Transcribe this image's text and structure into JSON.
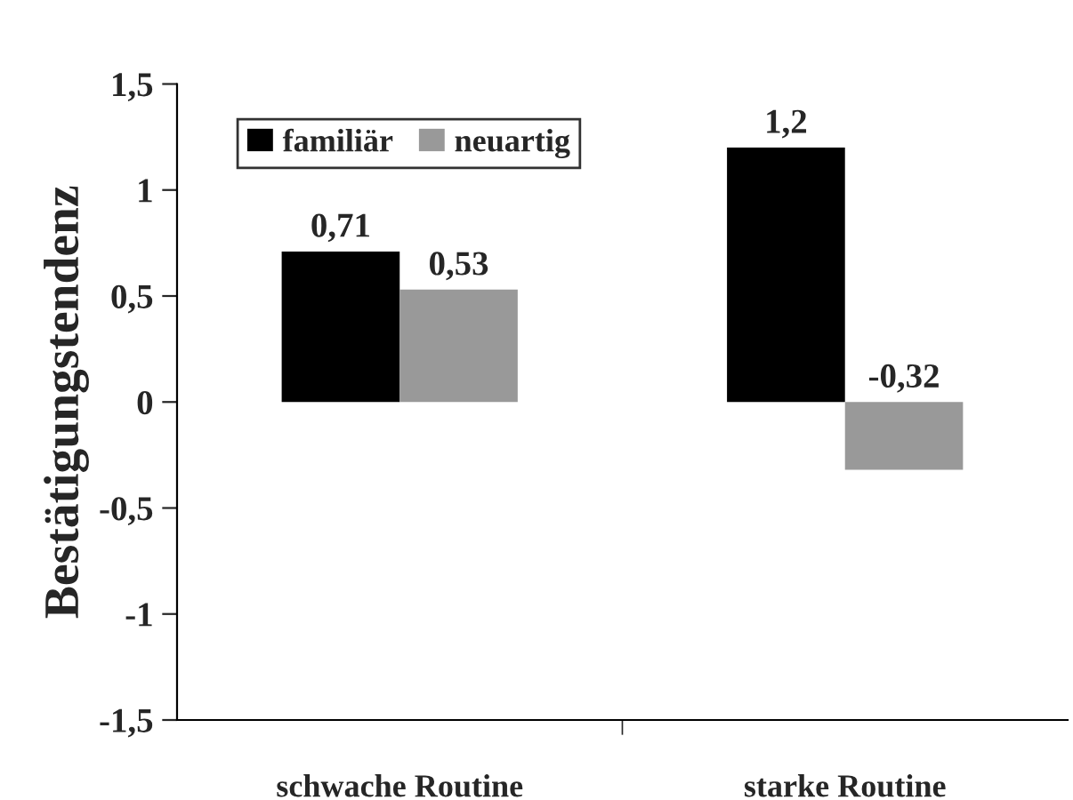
{
  "chart_data": {
    "type": "bar",
    "ylabel": "Bestätigungstendenz",
    "categories": [
      "schwache Routine",
      "starke Routine"
    ],
    "series": [
      {
        "name": "familiär",
        "color": "#000000",
        "values": [
          0.71,
          1.2
        ],
        "value_labels": [
          "0,71",
          "1,2"
        ]
      },
      {
        "name": "neuartig",
        "color": "#999999",
        "values": [
          0.53,
          -0.32
        ],
        "value_labels": [
          "0,53",
          "-0,32"
        ]
      }
    ],
    "ylim": [
      -1.5,
      1.5
    ],
    "yticks": [
      {
        "value": -1.5,
        "label": "-1,5"
      },
      {
        "value": -1,
        "label": "-1"
      },
      {
        "value": -0.5,
        "label": "-0,5"
      },
      {
        "value": 0,
        "label": "0"
      },
      {
        "value": 0.5,
        "label": "0,5"
      },
      {
        "value": 1,
        "label": "1"
      },
      {
        "value": 1.5,
        "label": "1,5"
      }
    ],
    "grid": false,
    "legend": "top left"
  }
}
